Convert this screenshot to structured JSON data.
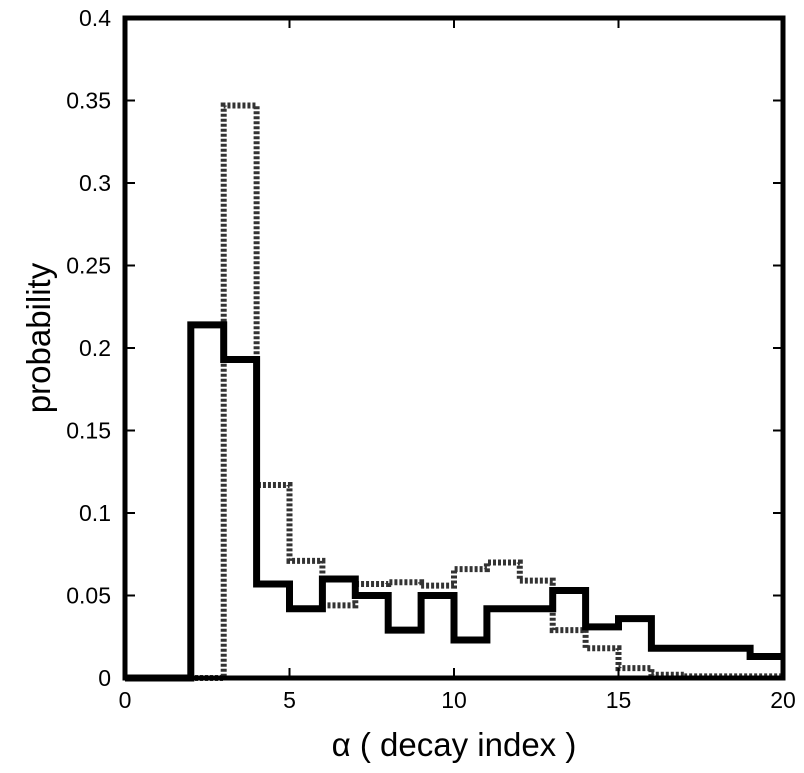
{
  "chart_data": {
    "type": "line",
    "subtype": "step-histogram",
    "title": "",
    "xlabel": "α ( decay index )",
    "ylabel": "probability",
    "xlim": [
      0,
      20
    ],
    "ylim": [
      0,
      0.4
    ],
    "grid": false,
    "legend": "none",
    "xticks": [
      0,
      5,
      10,
      15,
      20
    ],
    "xtick_labels": [
      "0",
      "5",
      "10",
      "15",
      "20"
    ],
    "yticks": [
      0,
      0.05,
      0.1,
      0.15,
      0.2,
      0.25,
      0.3,
      0.35,
      0.4
    ],
    "ytick_labels": [
      "0",
      "0.05",
      "0.1",
      "0.15",
      "0.2",
      "0.25",
      "0.3",
      "0.35",
      "0.4"
    ],
    "bin_edges": [
      0,
      1,
      2,
      3,
      4,
      5,
      6,
      7,
      8,
      9,
      10,
      11,
      12,
      13,
      14,
      15,
      16,
      17,
      18,
      19,
      20
    ],
    "series": [
      {
        "style": "solid",
        "color": "#000000",
        "values": [
          0,
          0,
          0.214,
          0.193,
          0.057,
          0.042,
          0.06,
          0.05,
          0.029,
          0.05,
          0.023,
          0.042,
          0.042,
          0.053,
          0.031,
          0.036,
          0.018,
          0.018,
          0.018,
          0.013
        ]
      },
      {
        "style": "dotted",
        "color": "#333333",
        "values": [
          0,
          0,
          0,
          0.347,
          0.117,
          0.071,
          0.044,
          0.057,
          0.058,
          0.056,
          0.066,
          0.07,
          0.059,
          0.029,
          0.018,
          0.006,
          0.002,
          0.001,
          0.001,
          0.001
        ]
      }
    ]
  }
}
